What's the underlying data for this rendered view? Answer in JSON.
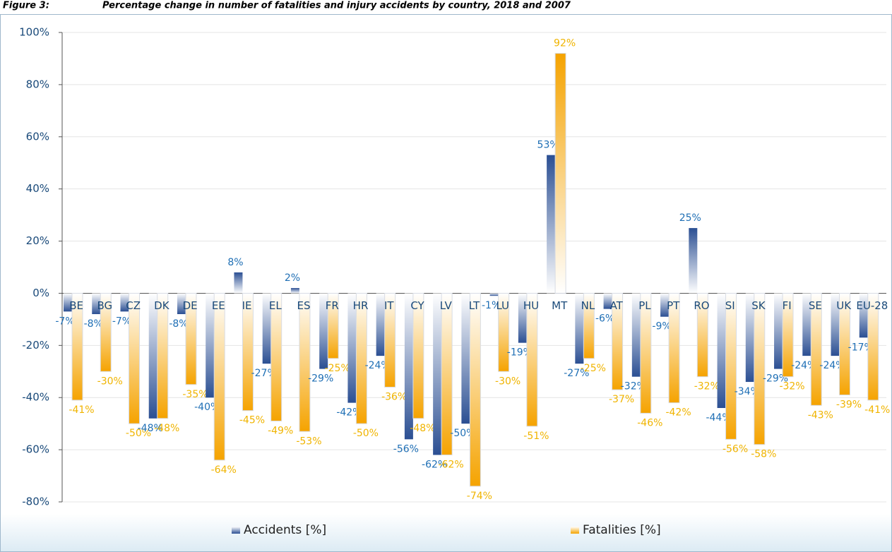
{
  "chart_data": {
    "type": "bar",
    "figure_label": "Figure 3:",
    "title": "Percentage change in number of fatalities and injury accidents by country, 2018 and 2007",
    "categories": [
      "BE",
      "BG",
      "CZ",
      "DK",
      "DE",
      "EE",
      "IE",
      "EL",
      "ES",
      "FR",
      "HR",
      "IT",
      "CY",
      "LV",
      "LT",
      "LU",
      "HU",
      "MT",
      "NL",
      "AT",
      "PL",
      "PT",
      "RO",
      "SI",
      "SK",
      "FI",
      "SE",
      "UK",
      "EU-28"
    ],
    "series": [
      {
        "name": "Accidents [%]",
        "color": "#2b4f93",
        "values": [
          -7,
          -8,
          -7,
          -48,
          -8,
          -40,
          8,
          -27,
          2,
          -29,
          -42,
          -24,
          -56,
          -62,
          -50,
          -1,
          -19,
          53,
          -27,
          -6,
          -32,
          -9,
          25,
          -44,
          -34,
          -29,
          -24,
          -24,
          -17
        ],
        "value_labels": [
          "-7%",
          "-8%",
          "-7%",
          "-48%",
          "-8%",
          "-40%",
          "8%",
          "-27%",
          "2%",
          "-29%",
          "-42%",
          "-24%",
          "-56%",
          "-62%",
          "-50%",
          "-1%",
          "-19%",
          "53%",
          "-27%",
          "-6%",
          "-32%",
          "-9%",
          "25%",
          "-44%",
          "-34%",
          "-29%",
          "-24%",
          "-24%",
          "-17%"
        ]
      },
      {
        "name": "Fatalities [%]",
        "color": "#f5a300",
        "values": [
          -41,
          -30,
          -50,
          -48,
          -35,
          -64,
          -45,
          -49,
          -53,
          -25,
          -50,
          -36,
          -48,
          -62,
          -74,
          -30,
          -51,
          92,
          -25,
          -37,
          -46,
          -42,
          -32,
          -56,
          -58,
          -32,
          -43,
          -39,
          -41
        ],
        "value_labels": [
          "-41%",
          "-30%",
          "-50%",
          "-48%",
          "-35%",
          "-64%",
          "-45%",
          "-49%",
          "-53%",
          "-25%",
          "-50%",
          "-36%",
          "-48%",
          "-62%",
          "-74%",
          "-30%",
          "-51%",
          "92%",
          "-25%",
          "-37%",
          "-46%",
          "-42%",
          "-32%",
          "-56%",
          "-58%",
          "-32%",
          "-43%",
          "-39%",
          "-41%"
        ]
      }
    ],
    "ylim": [
      -80,
      100
    ],
    "yticks": [
      {
        "value": -80,
        "label": "-80%"
      },
      {
        "value": -60,
        "label": "-60%"
      },
      {
        "value": -40,
        "label": "-40%"
      },
      {
        "value": -20,
        "label": "-20%"
      },
      {
        "value": 0,
        "label": "0%"
      },
      {
        "value": 20,
        "label": "20%"
      },
      {
        "value": 40,
        "label": "40%"
      },
      {
        "value": 60,
        "label": "60%"
      },
      {
        "value": 80,
        "label": "80%"
      },
      {
        "value": 100,
        "label": "100%"
      }
    ],
    "grid": true,
    "legend": "bottom"
  }
}
